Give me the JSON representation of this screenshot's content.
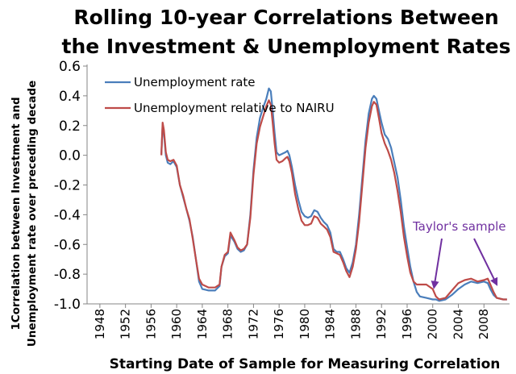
{
  "chart_data": {
    "type": "line",
    "title_lines": [
      "Rolling 10-year Correlations Between",
      "the Investment & Unemployment Rates"
    ],
    "xlabel": "Starting Date of Sample for Measuring Correlation",
    "ylabel_lines": [
      "1Correlation between Investment and",
      "Unemployment rate over preceding decade"
    ],
    "xlim": [
      1946,
      2012
    ],
    "ylim": [
      -1.0,
      0.6
    ],
    "x_ticks": [
      1948,
      1952,
      1956,
      1960,
      1964,
      1968,
      1972,
      1976,
      1980,
      1984,
      1988,
      1992,
      1996,
      2000,
      2004,
      2008
    ],
    "y_ticks": [
      0.6,
      0.4,
      0.2,
      0.0,
      -0.2,
      -0.4,
      -0.6,
      -0.8,
      -1.0
    ],
    "y_tick_labels": [
      "0.6",
      "0.4",
      "0.2",
      "0.0",
      "-0.2",
      "-0.4",
      "-0.6",
      "-0.8",
      "-1.0"
    ],
    "grid": false,
    "legend_position": "top-left",
    "series": [
      {
        "name": "Unemployment rate",
        "color": "#4a7ebb",
        "points": [
          [
            1957.6,
            0.0
          ],
          [
            1957.8,
            0.2
          ],
          [
            1958.0,
            0.15
          ],
          [
            1958.3,
            0.0
          ],
          [
            1958.6,
            -0.05
          ],
          [
            1959.0,
            -0.06
          ],
          [
            1959.5,
            -0.04
          ],
          [
            1960.0,
            -0.08
          ],
          [
            1960.5,
            -0.2
          ],
          [
            1961.0,
            -0.28
          ],
          [
            1961.5,
            -0.36
          ],
          [
            1962.0,
            -0.44
          ],
          [
            1962.5,
            -0.55
          ],
          [
            1963.0,
            -0.7
          ],
          [
            1963.5,
            -0.85
          ],
          [
            1964.0,
            -0.9
          ],
          [
            1965.0,
            -0.91
          ],
          [
            1966.0,
            -0.91
          ],
          [
            1966.7,
            -0.88
          ],
          [
            1967.0,
            -0.75
          ],
          [
            1967.5,
            -0.68
          ],
          [
            1968.0,
            -0.66
          ],
          [
            1968.4,
            -0.54
          ],
          [
            1969.0,
            -0.58
          ],
          [
            1969.5,
            -0.63
          ],
          [
            1970.0,
            -0.65
          ],
          [
            1970.5,
            -0.64
          ],
          [
            1971.0,
            -0.6
          ],
          [
            1971.5,
            -0.4
          ],
          [
            1972.0,
            -0.1
          ],
          [
            1972.5,
            0.12
          ],
          [
            1973.0,
            0.25
          ],
          [
            1973.5,
            0.32
          ],
          [
            1974.0,
            0.38
          ],
          [
            1974.4,
            0.45
          ],
          [
            1974.7,
            0.43
          ],
          [
            1975.0,
            0.3
          ],
          [
            1975.3,
            0.15
          ],
          [
            1975.6,
            0.02
          ],
          [
            1976.0,
            0.0
          ],
          [
            1976.5,
            0.01
          ],
          [
            1977.0,
            0.02
          ],
          [
            1977.3,
            0.03
          ],
          [
            1977.6,
            0.0
          ],
          [
            1978.0,
            -0.08
          ],
          [
            1978.5,
            -0.2
          ],
          [
            1979.0,
            -0.3
          ],
          [
            1979.5,
            -0.38
          ],
          [
            1980.0,
            -0.41
          ],
          [
            1980.5,
            -0.42
          ],
          [
            1981.0,
            -0.41
          ],
          [
            1981.5,
            -0.37
          ],
          [
            1982.0,
            -0.38
          ],
          [
            1982.5,
            -0.42
          ],
          [
            1983.0,
            -0.45
          ],
          [
            1983.5,
            -0.47
          ],
          [
            1984.0,
            -0.52
          ],
          [
            1984.5,
            -0.63
          ],
          [
            1985.0,
            -0.65
          ],
          [
            1985.5,
            -0.65
          ],
          [
            1986.0,
            -0.7
          ],
          [
            1986.5,
            -0.76
          ],
          [
            1987.0,
            -0.79
          ],
          [
            1987.5,
            -0.72
          ],
          [
            1988.0,
            -0.6
          ],
          [
            1988.5,
            -0.4
          ],
          [
            1989.0,
            -0.15
          ],
          [
            1989.5,
            0.1
          ],
          [
            1990.0,
            0.28
          ],
          [
            1990.5,
            0.38
          ],
          [
            1990.8,
            0.4
          ],
          [
            1991.2,
            0.38
          ],
          [
            1991.6,
            0.3
          ],
          [
            1992.0,
            0.22
          ],
          [
            1992.5,
            0.14
          ],
          [
            1993.0,
            0.11
          ],
          [
            1993.5,
            0.05
          ],
          [
            1994.0,
            -0.05
          ],
          [
            1994.5,
            -0.15
          ],
          [
            1995.0,
            -0.3
          ],
          [
            1995.5,
            -0.48
          ],
          [
            1996.0,
            -0.62
          ],
          [
            1996.5,
            -0.75
          ],
          [
            1997.0,
            -0.85
          ],
          [
            1997.5,
            -0.92
          ],
          [
            1998.0,
            -0.95
          ],
          [
            1999.0,
            -0.96
          ],
          [
            2000.0,
            -0.97
          ],
          [
            2000.5,
            -0.97
          ],
          [
            2001.0,
            -0.98
          ],
          [
            2002.0,
            -0.97
          ],
          [
            2003.0,
            -0.94
          ],
          [
            2004.0,
            -0.9
          ],
          [
            2005.0,
            -0.87
          ],
          [
            2006.0,
            -0.85
          ],
          [
            2007.0,
            -0.86
          ],
          [
            2008.0,
            -0.85
          ],
          [
            2008.6,
            -0.86
          ],
          [
            2009.0,
            -0.9
          ],
          [
            2009.5,
            -0.94
          ],
          [
            2010.0,
            -0.96
          ],
          [
            2011.0,
            -0.97
          ],
          [
            2011.6,
            -0.97
          ]
        ]
      },
      {
        "name": "Unemployment relative to NAIRU",
        "color": "#be4b48",
        "points": [
          [
            1957.6,
            0.0
          ],
          [
            1957.8,
            0.22
          ],
          [
            1958.0,
            0.17
          ],
          [
            1958.3,
            0.02
          ],
          [
            1958.6,
            -0.03
          ],
          [
            1959.0,
            -0.04
          ],
          [
            1959.5,
            -0.03
          ],
          [
            1960.0,
            -0.07
          ],
          [
            1960.5,
            -0.2
          ],
          [
            1961.0,
            -0.27
          ],
          [
            1961.5,
            -0.36
          ],
          [
            1962.0,
            -0.43
          ],
          [
            1962.5,
            -0.56
          ],
          [
            1963.0,
            -0.7
          ],
          [
            1963.5,
            -0.83
          ],
          [
            1964.0,
            -0.87
          ],
          [
            1965.0,
            -0.89
          ],
          [
            1966.0,
            -0.89
          ],
          [
            1966.7,
            -0.87
          ],
          [
            1967.0,
            -0.75
          ],
          [
            1967.5,
            -0.67
          ],
          [
            1968.0,
            -0.65
          ],
          [
            1968.4,
            -0.52
          ],
          [
            1969.0,
            -0.57
          ],
          [
            1969.5,
            -0.62
          ],
          [
            1970.0,
            -0.64
          ],
          [
            1970.5,
            -0.63
          ],
          [
            1971.0,
            -0.6
          ],
          [
            1971.5,
            -0.42
          ],
          [
            1972.0,
            -0.13
          ],
          [
            1972.5,
            0.08
          ],
          [
            1973.0,
            0.19
          ],
          [
            1973.5,
            0.26
          ],
          [
            1974.0,
            0.33
          ],
          [
            1974.4,
            0.37
          ],
          [
            1974.7,
            0.34
          ],
          [
            1975.0,
            0.22
          ],
          [
            1975.3,
            0.08
          ],
          [
            1975.6,
            -0.03
          ],
          [
            1976.0,
            -0.05
          ],
          [
            1976.5,
            -0.04
          ],
          [
            1977.0,
            -0.02
          ],
          [
            1977.3,
            -0.01
          ],
          [
            1977.6,
            -0.04
          ],
          [
            1978.0,
            -0.12
          ],
          [
            1978.5,
            -0.26
          ],
          [
            1979.0,
            -0.36
          ],
          [
            1979.5,
            -0.44
          ],
          [
            1980.0,
            -0.47
          ],
          [
            1980.5,
            -0.47
          ],
          [
            1981.0,
            -0.46
          ],
          [
            1981.5,
            -0.41
          ],
          [
            1982.0,
            -0.42
          ],
          [
            1982.5,
            -0.46
          ],
          [
            1983.0,
            -0.48
          ],
          [
            1983.5,
            -0.5
          ],
          [
            1984.0,
            -0.55
          ],
          [
            1984.5,
            -0.65
          ],
          [
            1985.0,
            -0.66
          ],
          [
            1985.5,
            -0.67
          ],
          [
            1986.0,
            -0.72
          ],
          [
            1986.5,
            -0.78
          ],
          [
            1987.0,
            -0.82
          ],
          [
            1987.5,
            -0.75
          ],
          [
            1988.0,
            -0.63
          ],
          [
            1988.5,
            -0.45
          ],
          [
            1989.0,
            -0.2
          ],
          [
            1989.5,
            0.05
          ],
          [
            1990.0,
            0.22
          ],
          [
            1990.5,
            0.33
          ],
          [
            1990.8,
            0.36
          ],
          [
            1991.2,
            0.34
          ],
          [
            1991.6,
            0.25
          ],
          [
            1992.0,
            0.15
          ],
          [
            1992.5,
            0.08
          ],
          [
            1993.0,
            0.03
          ],
          [
            1993.5,
            -0.03
          ],
          [
            1994.0,
            -0.12
          ],
          [
            1994.5,
            -0.24
          ],
          [
            1995.0,
            -0.38
          ],
          [
            1995.5,
            -0.55
          ],
          [
            1996.0,
            -0.68
          ],
          [
            1996.5,
            -0.79
          ],
          [
            1997.0,
            -0.85
          ],
          [
            1997.5,
            -0.87
          ],
          [
            1998.0,
            -0.87
          ],
          [
            1999.0,
            -0.87
          ],
          [
            2000.0,
            -0.9
          ],
          [
            2000.5,
            -0.95
          ],
          [
            2001.0,
            -0.97
          ],
          [
            2002.0,
            -0.96
          ],
          [
            2003.0,
            -0.91
          ],
          [
            2004.0,
            -0.86
          ],
          [
            2005.0,
            -0.84
          ],
          [
            2006.0,
            -0.83
          ],
          [
            2007.0,
            -0.85
          ],
          [
            2008.0,
            -0.84
          ],
          [
            2008.6,
            -0.83
          ],
          [
            2009.0,
            -0.87
          ],
          [
            2009.5,
            -0.92
          ],
          [
            2010.0,
            -0.96
          ],
          [
            2011.0,
            -0.97
          ],
          [
            2011.6,
            -0.97
          ]
        ]
      }
    ],
    "annotations": [
      {
        "text": "Taylor's sample",
        "color": "#7030a0",
        "arrow_targets": [
          [
            2000.2,
            -0.89
          ],
          [
            2010.0,
            -0.87
          ]
        ]
      }
    ]
  }
}
